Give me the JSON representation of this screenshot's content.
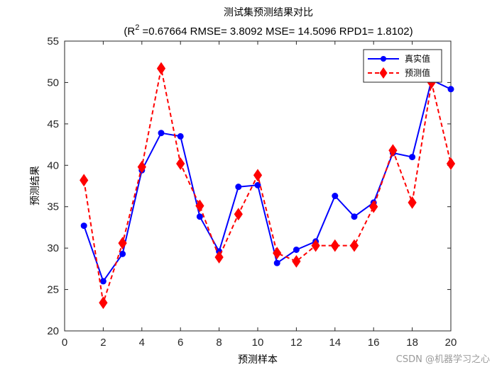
{
  "chart_data": {
    "type": "line",
    "title": "测试集预测结果对比",
    "subtitle_prefix": "(R",
    "subtitle_sup": "2",
    "subtitle_rest": " =0.67664 RMSE= 3.8092 MSE= 14.5096 RPD1= 1.8102)",
    "xlabel": "预测样本",
    "ylabel": "预测结果",
    "xlim": [
      0,
      20
    ],
    "ylim": [
      20,
      55
    ],
    "xticks": [
      0,
      2,
      4,
      6,
      8,
      10,
      12,
      14,
      16,
      18,
      20
    ],
    "yticks": [
      20,
      25,
      30,
      35,
      40,
      45,
      50,
      55
    ],
    "x": [
      1,
      2,
      3,
      4,
      5,
      6,
      7,
      8,
      9,
      10,
      11,
      12,
      13,
      14,
      15,
      16,
      17,
      18,
      19,
      20
    ],
    "series": [
      {
        "name": "真实值",
        "color": "#0000ff",
        "style": "solid",
        "marker": "circle",
        "values": [
          32.7,
          26.0,
          29.3,
          39.4,
          43.9,
          43.5,
          33.8,
          29.6,
          37.4,
          37.6,
          28.2,
          29.8,
          30.8,
          36.3,
          33.8,
          35.5,
          41.5,
          41.0,
          50.3,
          49.2
        ]
      },
      {
        "name": "预测值",
        "color": "#ff0000",
        "style": "dashed",
        "marker": "diamond",
        "values": [
          38.2,
          23.4,
          30.6,
          39.8,
          51.7,
          40.2,
          35.1,
          28.9,
          34.1,
          38.8,
          29.4,
          28.4,
          30.3,
          30.3,
          30.3,
          35.0,
          41.8,
          35.5,
          50.0,
          40.2
        ]
      }
    ],
    "grid": false,
    "legend_position": "top-right"
  },
  "watermark": "CSDN @机器学习之心"
}
